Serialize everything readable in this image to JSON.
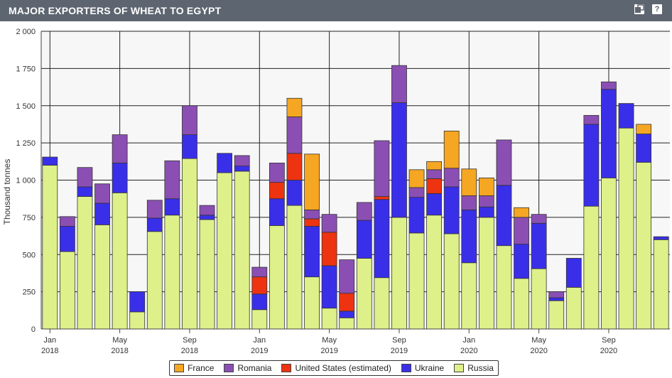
{
  "header": {
    "title": "MAJOR EXPORTERS OF WHEAT TO EGYPT",
    "help_label": "?"
  },
  "colors": {
    "France": "#f5a623",
    "Romania": "#8b4fb3",
    "United States (estimated)": "#ee3311",
    "Ukraine": "#3a2fe8",
    "Russia": "#def08a",
    "header_bg": "#5d6570"
  },
  "chart_data": {
    "type": "bar",
    "stacked": true,
    "ylabel": "Thousand tonnes",
    "ylim": [
      0,
      2000
    ],
    "yticks": [
      "0",
      "250",
      "500",
      "750",
      "1 000",
      "1 250",
      "1 500",
      "1 750",
      "2 000"
    ],
    "ytick_values": [
      0,
      250,
      500,
      750,
      1000,
      1250,
      1500,
      1750,
      2000
    ],
    "xtick_labels": [
      {
        "index": 0,
        "month": "Jan",
        "year": "2018"
      },
      {
        "index": 4,
        "month": "May",
        "year": "2018"
      },
      {
        "index": 8,
        "month": "Sep",
        "year": "2018"
      },
      {
        "index": 12,
        "month": "Jan",
        "year": "2019"
      },
      {
        "index": 16,
        "month": "May",
        "year": "2019"
      },
      {
        "index": 20,
        "month": "Sep",
        "year": "2019"
      },
      {
        "index": 24,
        "month": "Jan",
        "year": "2020"
      },
      {
        "index": 28,
        "month": "May",
        "year": "2020"
      },
      {
        "index": 32,
        "month": "Sep",
        "year": "2020"
      }
    ],
    "categories": [
      "Jan 2018",
      "Feb 2018",
      "Mar 2018",
      "Apr 2018",
      "May 2018",
      "Jun 2018",
      "Jul 2018",
      "Aug 2018",
      "Sep 2018",
      "Oct 2018",
      "Nov 2018",
      "Dec 2018",
      "Jan 2019",
      "Feb 2019",
      "Mar 2019",
      "Apr 2019",
      "May 2019",
      "Jun 2019",
      "Jul 2019",
      "Aug 2019",
      "Sep 2019",
      "Oct 2019",
      "Nov 2019",
      "Dec 2019",
      "Jan 2020",
      "Feb 2020",
      "Mar 2020",
      "Apr 2020",
      "May 2020",
      "Jun 2020",
      "Jul 2020",
      "Aug 2020",
      "Sep 2020",
      "Oct 2020",
      "Nov 2020",
      "Dec 2020"
    ],
    "series": [
      {
        "name": "Russia",
        "values": [
          1100,
          520,
          890,
          700,
          915,
          115,
          655,
          765,
          1145,
          735,
          1050,
          1060,
          130,
          695,
          830,
          350,
          140,
          75,
          475,
          345,
          750,
          645,
          765,
          640,
          445,
          750,
          560,
          340,
          405,
          190,
          280,
          825,
          1015,
          1350,
          1120,
          600
        ]
      },
      {
        "name": "Ukraine",
        "values": [
          55,
          170,
          65,
          145,
          200,
          135,
          90,
          110,
          160,
          30,
          130,
          35,
          105,
          180,
          170,
          340,
          285,
          45,
          255,
          525,
          770,
          240,
          145,
          315,
          355,
          70,
          405,
          230,
          305,
          20,
          195,
          550,
          595,
          165,
          190,
          20
        ]
      },
      {
        "name": "United States (estimated)",
        "values": [
          0,
          0,
          0,
          0,
          0,
          0,
          0,
          0,
          0,
          0,
          0,
          0,
          115,
          110,
          180,
          50,
          225,
          120,
          0,
          20,
          0,
          0,
          100,
          0,
          0,
          0,
          0,
          0,
          0,
          0,
          0,
          0,
          0,
          0,
          0,
          0
        ]
      },
      {
        "name": "Romania",
        "values": [
          0,
          65,
          130,
          130,
          190,
          0,
          120,
          255,
          195,
          65,
          0,
          70,
          65,
          130,
          245,
          60,
          120,
          225,
          120,
          375,
          250,
          65,
          60,
          125,
          95,
          75,
          305,
          180,
          60,
          40,
          0,
          60,
          50,
          0,
          0,
          0
        ]
      },
      {
        "name": "France",
        "values": [
          0,
          0,
          0,
          0,
          0,
          0,
          0,
          0,
          0,
          0,
          0,
          0,
          0,
          0,
          125,
          375,
          0,
          0,
          0,
          0,
          0,
          120,
          55,
          250,
          180,
          120,
          0,
          65,
          0,
          0,
          0,
          0,
          0,
          0,
          65,
          0
        ]
      }
    ],
    "legend": {
      "position": "bottom",
      "order": [
        "France",
        "Romania",
        "United States (estimated)",
        "Ukraine",
        "Russia"
      ]
    },
    "grid": true
  }
}
